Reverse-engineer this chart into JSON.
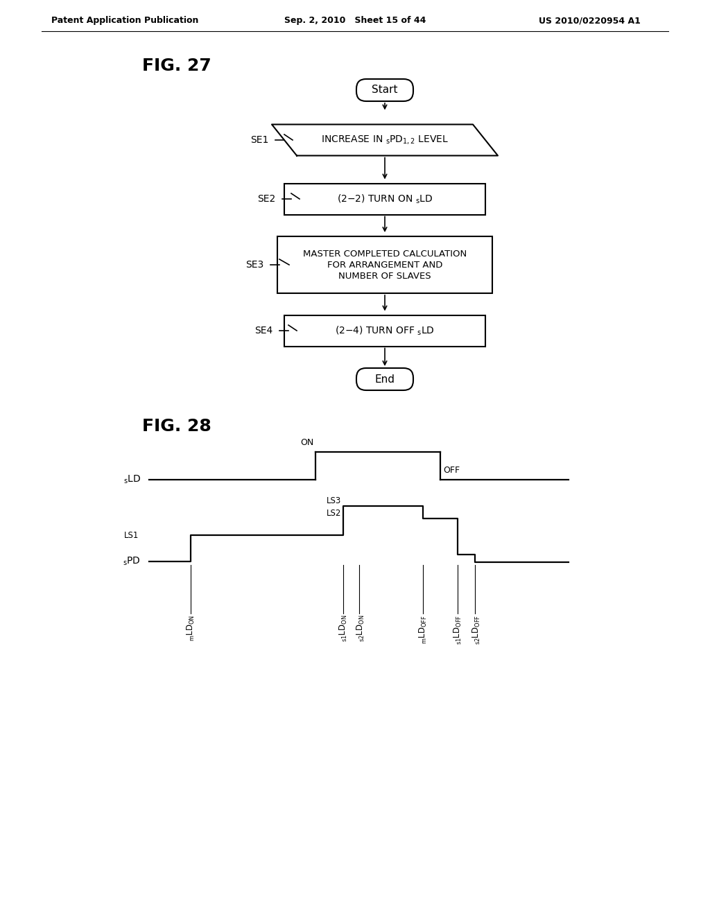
{
  "bg_color": "#ffffff",
  "text_color": "#000000",
  "header_left": "Patent Application Publication",
  "header_center": "Sep. 2, 2010   Sheet 15 of 44",
  "header_right": "US 2010/0220954 A1",
  "fig27_label": "FIG. 27",
  "fig28_label": "FIG. 28"
}
